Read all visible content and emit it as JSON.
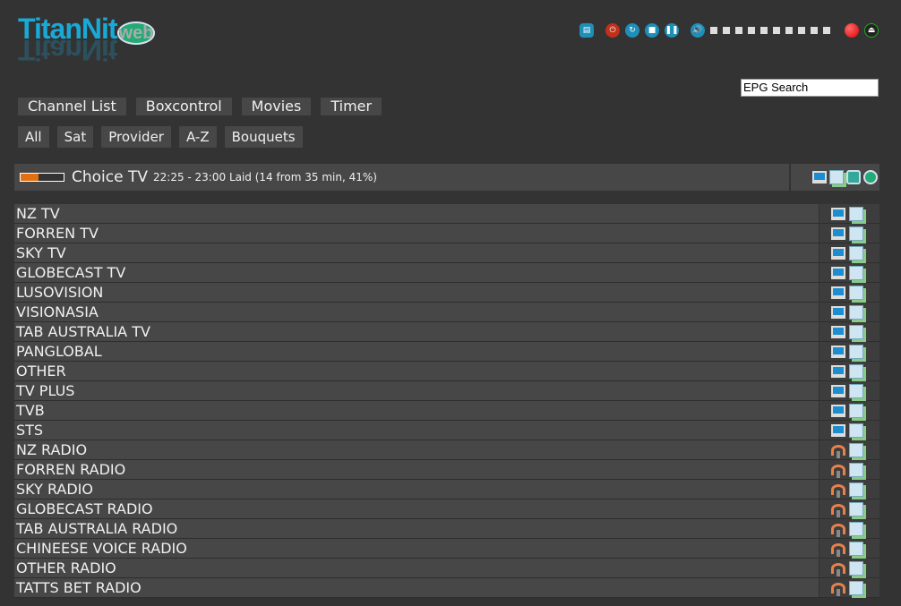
{
  "logo": {
    "main": "TitanNit",
    "sub": "web"
  },
  "controls": {
    "icons": [
      "remote-icon",
      "power-icon",
      "restart-icon",
      "standby-icon",
      "pause-icon",
      "volume-icon"
    ],
    "volume_steps": 10,
    "record_color": "#e01010"
  },
  "epg_search": {
    "value": "EPG Search"
  },
  "nav": [
    "Channel List",
    "Boxcontrol",
    "Movies",
    "Timer"
  ],
  "filters": [
    "All",
    "Sat",
    "Provider",
    "A-Z",
    "Bouquets"
  ],
  "now_playing": {
    "channel": "Choice TV",
    "info": "22:25 - 23:00 Laid (14 from 35 min, 41%)",
    "progress_percent": 41
  },
  "bouquets": [
    {
      "name": "NZ TV",
      "type": "tv"
    },
    {
      "name": "FORREN TV",
      "type": "tv"
    },
    {
      "name": "SKY TV",
      "type": "tv"
    },
    {
      "name": "GLOBECAST TV",
      "type": "tv"
    },
    {
      "name": "LUSOVISION",
      "type": "tv"
    },
    {
      "name": "VISIONASIA",
      "type": "tv"
    },
    {
      "name": "TAB AUSTRALIA TV",
      "type": "tv"
    },
    {
      "name": "PANGLOBAL",
      "type": "tv"
    },
    {
      "name": "OTHER",
      "type": "tv"
    },
    {
      "name": "TV PLUS",
      "type": "tv"
    },
    {
      "name": "TVB",
      "type": "tv"
    },
    {
      "name": "STS",
      "type": "tv"
    },
    {
      "name": "NZ RADIO",
      "type": "radio"
    },
    {
      "name": "FORREN RADIO",
      "type": "radio"
    },
    {
      "name": "SKY RADIO",
      "type": "radio"
    },
    {
      "name": "GLOBECAST RADIO",
      "type": "radio"
    },
    {
      "name": "TAB AUSTRALIA RADIO",
      "type": "radio"
    },
    {
      "name": "CHINEESE VOICE RADIO",
      "type": "radio"
    },
    {
      "name": "OTHER RADIO",
      "type": "radio"
    },
    {
      "name": "TATTS BET RADIO",
      "type": "radio"
    }
  ]
}
